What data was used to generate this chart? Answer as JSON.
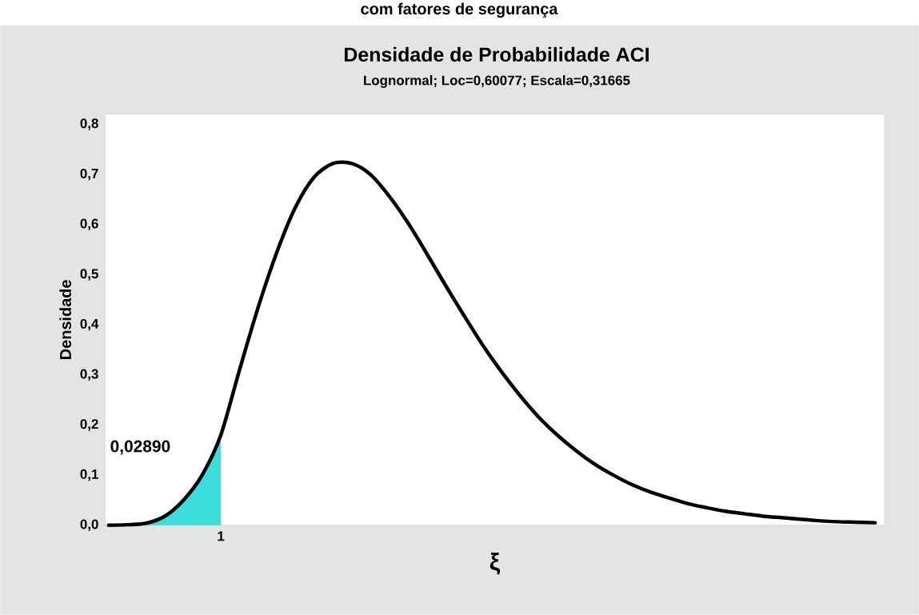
{
  "chart_data": {
    "type": "line",
    "title": "Densidade de Probabilidade ACI",
    "subtitle": "Lognormal; Loc=0,60077; Escala=0,31665",
    "xlabel": "ξ",
    "ylabel": "Densidade",
    "annotations": [
      "com fatores de segurança",
      "0,02890"
    ],
    "categories": [
      null,
      null,
      null,
      null,
      null,
      null,
      "1",
      null,
      null,
      null,
      null,
      null,
      null,
      null,
      null,
      null,
      null,
      null,
      null,
      null,
      null,
      null,
      null,
      null,
      null,
      null,
      null,
      null,
      null,
      null,
      null,
      null,
      null,
      null,
      null,
      null,
      null,
      null,
      null,
      null,
      null,
      null
    ],
    "ylim": [
      0,
      0.82
    ],
    "yticks": [
      {
        "value": 0,
        "label": "0,0"
      },
      {
        "value": 0.1,
        "label": "0,1"
      },
      {
        "value": 0.2,
        "label": "0,2"
      },
      {
        "value": 0.3,
        "label": "0,3"
      },
      {
        "value": 0.4,
        "label": "0,4"
      },
      {
        "value": 0.5,
        "label": "0,5"
      },
      {
        "value": 0.6,
        "label": "0,6"
      },
      {
        "value": 0.7,
        "label": "0,7"
      },
      {
        "value": 0.8,
        "label": "0,8"
      }
    ],
    "grid": false,
    "series": [
      {
        "type": "area",
        "color": "#3cdcdc",
        "values": [
          0,
          0.001,
          0.004,
          0.018,
          0.05,
          0.1,
          0.18,
          null,
          null,
          null,
          null,
          null,
          null,
          null,
          null,
          null,
          null,
          null,
          null,
          null,
          null,
          null,
          null,
          null,
          null,
          null,
          null,
          null,
          null,
          null,
          null,
          null,
          null,
          null,
          null,
          null,
          null,
          null,
          null,
          null,
          null,
          null
        ]
      },
      {
        "color": "#000000",
        "values": [
          0,
          0.001,
          0.004,
          0.018,
          0.05,
          0.1,
          0.18,
          0.31,
          0.435,
          0.545,
          0.635,
          0.695,
          0.722,
          0.722,
          0.7,
          0.657,
          0.604,
          0.543,
          0.48,
          0.419,
          0.36,
          0.307,
          0.259,
          0.216,
          0.18,
          0.149,
          0.122,
          0.1,
          0.081,
          0.066,
          0.054,
          0.043,
          0.035,
          0.028,
          0.023,
          0.018,
          0.015,
          0.012,
          0.009,
          0.007,
          0.006,
          0.005
        ]
      }
    ]
  }
}
